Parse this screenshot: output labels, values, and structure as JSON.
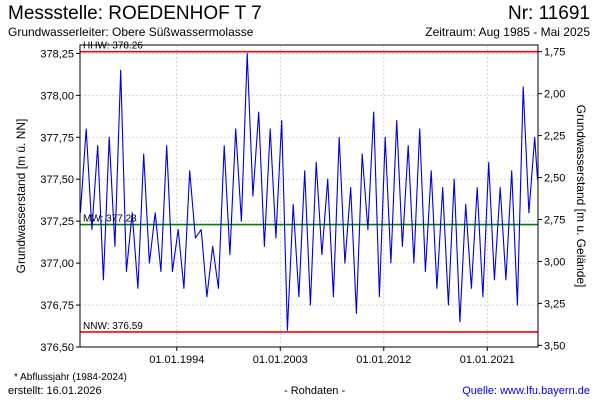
{
  "header": {
    "title": "Messstelle: ROEDENHOF T 7",
    "number": "Nr: 11691",
    "aquifer": "Grundwasserleiter:   Obere Süßwassermolasse",
    "period": "Zeitraum: Aug 1985 - Mai 2025"
  },
  "footer": {
    "footnote": "* Abflussjahr (1984-2024)",
    "created": "erstellt:  16.01.2026",
    "rawdata": "- Rohdaten -",
    "source": "Quelle: www.lfu.bayern.de"
  },
  "colors": {
    "series": "#0000dd",
    "extreme_line": "#ff0000",
    "mean_line": "#008000",
    "grid": "#c8c8c8"
  },
  "chart_data": {
    "type": "line",
    "ylabel": "Grundwasserstand [m ü. NN]",
    "y2label": "Grundwasserstand [m u. Gelände]",
    "ylim": [
      376.5,
      378.3
    ],
    "y2lim": [
      1.71,
      3.51
    ],
    "y2_reversed": true,
    "xlim": [
      "1985-08-01",
      "2025-05-31"
    ],
    "grid": true,
    "yticks": [
      {
        "value": 376.5,
        "label": "376,50"
      },
      {
        "value": 376.75,
        "label": "376,75"
      },
      {
        "value": 377.0,
        "label": "377,00"
      },
      {
        "value": 377.25,
        "label": "377,25"
      },
      {
        "value": 377.5,
        "label": "377,50"
      },
      {
        "value": 377.75,
        "label": "377,75"
      },
      {
        "value": 378.0,
        "label": "378,00"
      },
      {
        "value": 378.25,
        "label": "378,25"
      }
    ],
    "y2ticks": [
      {
        "value": 1.75,
        "label": "1,75"
      },
      {
        "value": 2.0,
        "label": "2,00"
      },
      {
        "value": 2.25,
        "label": "2,25"
      },
      {
        "value": 2.5,
        "label": "2,50"
      },
      {
        "value": 2.75,
        "label": "2,75"
      },
      {
        "value": 3.0,
        "label": "3,00"
      },
      {
        "value": 3.25,
        "label": "3,25"
      },
      {
        "value": 3.5,
        "label": "3,50"
      }
    ],
    "xticks": [
      {
        "value": "1994-01-01",
        "label": "01.01.1994"
      },
      {
        "value": "2003-01-01",
        "label": "01.01.2003"
      },
      {
        "value": "2012-01-01",
        "label": "01.01.2012"
      },
      {
        "value": "2021-01-01",
        "label": "01.01.2021"
      }
    ],
    "reference_lines": [
      {
        "label": "HHW: 378.26",
        "value": 378.26,
        "kind": "extreme"
      },
      {
        "label": "MW: 377.23",
        "value": 377.23,
        "kind": "mean"
      },
      {
        "label": "NNW: 376.59",
        "value": 376.59,
        "kind": "extreme"
      }
    ],
    "series": [
      {
        "x": [
          "1985-08",
          "1986-02",
          "1986-08",
          "1987-02",
          "1987-08",
          "1988-02",
          "1988-08",
          "1989-02",
          "1989-08",
          "1990-02",
          "1990-08",
          "1991-02",
          "1991-08",
          "1992-02",
          "1992-08",
          "1993-02",
          "1993-08",
          "1994-02",
          "1994-08",
          "1995-02",
          "1995-08",
          "1996-02",
          "1996-08",
          "1997-02",
          "1997-08",
          "1998-02",
          "1998-08",
          "1999-02",
          "1999-08",
          "2000-02",
          "2000-08",
          "2001-02",
          "2001-08",
          "2002-02",
          "2002-08",
          "2003-02",
          "2003-08",
          "2004-02",
          "2004-08",
          "2005-02",
          "2005-08",
          "2006-02",
          "2006-08",
          "2007-02",
          "2007-08",
          "2008-02",
          "2008-08",
          "2009-02",
          "2009-08",
          "2010-02",
          "2010-08",
          "2011-02",
          "2011-08",
          "2012-02",
          "2012-08",
          "2013-02",
          "2013-08",
          "2014-02",
          "2014-08",
          "2015-02",
          "2015-08",
          "2016-02",
          "2016-08",
          "2017-02",
          "2017-08",
          "2018-02",
          "2018-08",
          "2019-02",
          "2019-08",
          "2020-02",
          "2020-08",
          "2021-02",
          "2021-08",
          "2022-02",
          "2022-08",
          "2023-02",
          "2023-08",
          "2024-02",
          "2024-08",
          "2025-02",
          "2025-05"
        ],
        "values": [
          377.3,
          377.8,
          377.2,
          377.7,
          376.9,
          377.75,
          377.1,
          378.15,
          376.95,
          377.3,
          376.85,
          377.65,
          377.0,
          377.3,
          376.95,
          377.7,
          376.95,
          377.2,
          376.85,
          377.55,
          377.15,
          377.2,
          376.8,
          377.1,
          376.85,
          377.7,
          377.05,
          377.8,
          377.25,
          378.25,
          377.4,
          377.9,
          377.1,
          377.8,
          377.15,
          377.85,
          376.6,
          377.35,
          376.8,
          377.55,
          376.75,
          377.6,
          377.05,
          377.5,
          376.8,
          377.75,
          377.0,
          377.45,
          376.7,
          377.65,
          377.2,
          377.9,
          376.8,
          377.75,
          377.0,
          377.85,
          377.1,
          377.7,
          377.0,
          377.8,
          376.95,
          377.55,
          376.85,
          377.45,
          376.75,
          377.5,
          376.65,
          377.35,
          376.85,
          377.45,
          376.8,
          377.6,
          376.9,
          377.45,
          376.9,
          377.55,
          376.75,
          378.05,
          377.3,
          377.75,
          377.5
        ]
      }
    ]
  }
}
